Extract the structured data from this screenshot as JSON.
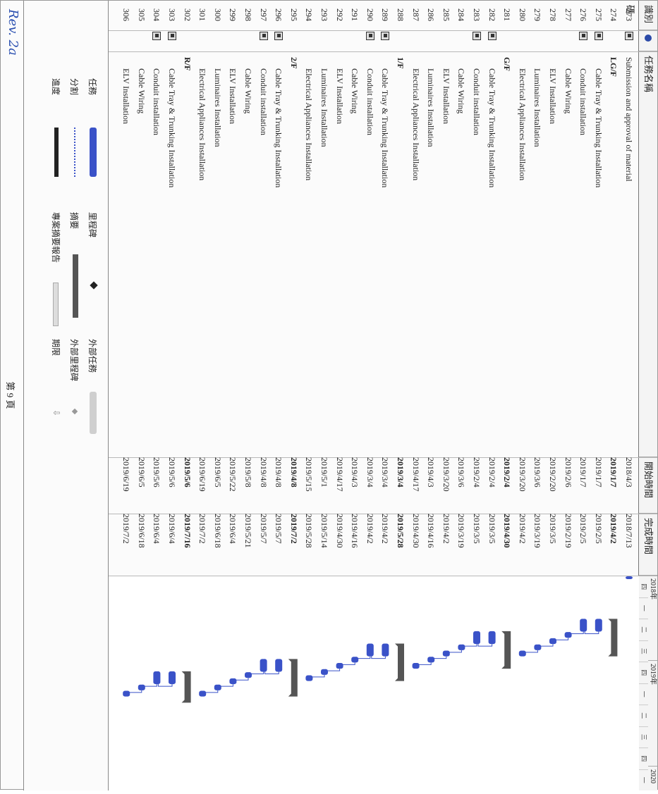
{
  "header": {
    "id": "識別碼",
    "mode": "",
    "name": "任務名稱",
    "start": "開始時間",
    "finish": "完成時間"
  },
  "timeline": {
    "year_2018": "2018年",
    "year_2019": "2019年",
    "year_2020": "2020",
    "quarters_2018": [
      "四",
      "一",
      "二",
      "三"
    ],
    "quarters_2019": [
      "四",
      "一",
      "二",
      "三",
      "四",
      "一"
    ]
  },
  "rows": [
    {
      "id": "273",
      "name": "Submission and approval of material",
      "start": "2018/4/3",
      "finish": "2018/7/13",
      "level": 0,
      "summary": false,
      "info": true
    },
    {
      "id": "274",
      "name": "LG/F",
      "start": "2019/1/7",
      "finish": "2019/4/2",
      "level": 0,
      "summary": true,
      "info": false
    },
    {
      "id": "275",
      "name": "Cable Tray & Trunking Installation",
      "start": "2019/1/7",
      "finish": "2019/2/5",
      "level": 1,
      "summary": false,
      "info": true
    },
    {
      "id": "276",
      "name": "Conduit installation",
      "start": "2019/1/7",
      "finish": "2019/2/5",
      "level": 1,
      "summary": false,
      "info": true
    },
    {
      "id": "277",
      "name": "Cable Wiring",
      "start": "2019/2/6",
      "finish": "2019/2/19",
      "level": 1,
      "summary": false,
      "info": false
    },
    {
      "id": "278",
      "name": "ELV Installation",
      "start": "2019/2/20",
      "finish": "2019/3/5",
      "level": 1,
      "summary": false,
      "info": false
    },
    {
      "id": "279",
      "name": "Luminaires Installation",
      "start": "2019/3/6",
      "finish": "2019/3/19",
      "level": 1,
      "summary": false,
      "info": false
    },
    {
      "id": "280",
      "name": "Electrical Appliances Installation",
      "start": "2019/3/20",
      "finish": "2019/4/2",
      "level": 1,
      "summary": false,
      "info": false
    },
    {
      "id": "281",
      "name": "G/F",
      "start": "2019/2/4",
      "finish": "2019/4/30",
      "level": 0,
      "summary": true,
      "info": false
    },
    {
      "id": "282",
      "name": "Cable Tray & Trunking Installation",
      "start": "2019/2/4",
      "finish": "2019/3/5",
      "level": 1,
      "summary": false,
      "info": true
    },
    {
      "id": "283",
      "name": "Conduit installation",
      "start": "2019/2/4",
      "finish": "2019/3/5",
      "level": 1,
      "summary": false,
      "info": true
    },
    {
      "id": "284",
      "name": "Cable Wiring",
      "start": "2019/3/6",
      "finish": "2019/3/19",
      "level": 1,
      "summary": false,
      "info": false
    },
    {
      "id": "285",
      "name": "ELV Installation",
      "start": "2019/3/20",
      "finish": "2019/4/2",
      "level": 1,
      "summary": false,
      "info": false
    },
    {
      "id": "286",
      "name": "Luminaires Installation",
      "start": "2019/4/3",
      "finish": "2019/4/16",
      "level": 1,
      "summary": false,
      "info": false
    },
    {
      "id": "287",
      "name": "Electrical Appliances Installation",
      "start": "2019/4/17",
      "finish": "2019/4/30",
      "level": 1,
      "summary": false,
      "info": false
    },
    {
      "id": "288",
      "name": "1/F",
      "start": "2019/3/4",
      "finish": "2019/5/28",
      "level": 0,
      "summary": true,
      "info": false
    },
    {
      "id": "289",
      "name": "Cable Tray & Trunking Installation",
      "start": "2019/3/4",
      "finish": "2019/4/2",
      "level": 1,
      "summary": false,
      "info": true
    },
    {
      "id": "290",
      "name": "Conduit installation",
      "start": "2019/3/4",
      "finish": "2019/4/2",
      "level": 1,
      "summary": false,
      "info": true
    },
    {
      "id": "291",
      "name": "Cable Wiring",
      "start": "2019/4/3",
      "finish": "2019/4/16",
      "level": 1,
      "summary": false,
      "info": false
    },
    {
      "id": "292",
      "name": "ELV Installation",
      "start": "2019/4/17",
      "finish": "2019/4/30",
      "level": 1,
      "summary": false,
      "info": false
    },
    {
      "id": "293",
      "name": "Luminaires Installation",
      "start": "2019/5/1",
      "finish": "2019/5/14",
      "level": 1,
      "summary": false,
      "info": false
    },
    {
      "id": "294",
      "name": "Electrical Appliances Installation",
      "start": "2019/5/15",
      "finish": "2019/5/28",
      "level": 1,
      "summary": false,
      "info": false
    },
    {
      "id": "295",
      "name": "2/F",
      "start": "2019/4/8",
      "finish": "2019/7/2",
      "level": 0,
      "summary": true,
      "info": false
    },
    {
      "id": "296",
      "name": "Cable Tray & Trunking Installation",
      "start": "2019/4/8",
      "finish": "2019/5/7",
      "level": 1,
      "summary": false,
      "info": true
    },
    {
      "id": "297",
      "name": "Conduit installation",
      "start": "2019/4/8",
      "finish": "2019/5/7",
      "level": 1,
      "summary": false,
      "info": true
    },
    {
      "id": "298",
      "name": "Cable Wiring",
      "start": "2019/5/8",
      "finish": "2019/5/21",
      "level": 1,
      "summary": false,
      "info": false
    },
    {
      "id": "299",
      "name": "ELV Installation",
      "start": "2019/5/22",
      "finish": "2019/6/4",
      "level": 1,
      "summary": false,
      "info": false
    },
    {
      "id": "300",
      "name": "Luminaires Installation",
      "start": "2019/6/5",
      "finish": "2019/6/18",
      "level": 1,
      "summary": false,
      "info": false
    },
    {
      "id": "301",
      "name": "Electrical Appliances Installation",
      "start": "2019/6/19",
      "finish": "2019/7/2",
      "level": 1,
      "summary": false,
      "info": false
    },
    {
      "id": "302",
      "name": "R/F",
      "start": "2019/5/6",
      "finish": "2019/7/16",
      "level": 0,
      "summary": true,
      "info": false
    },
    {
      "id": "303",
      "name": "Cable Tray & Trunking Installation",
      "start": "2019/5/6",
      "finish": "2019/6/4",
      "level": 1,
      "summary": false,
      "info": true
    },
    {
      "id": "304",
      "name": "Conduit installation",
      "start": "2019/5/6",
      "finish": "2019/6/4",
      "level": 1,
      "summary": false,
      "info": true
    },
    {
      "id": "305",
      "name": "Cable Wiring",
      "start": "2019/6/5",
      "finish": "2019/6/18",
      "level": 1,
      "summary": false,
      "info": false
    },
    {
      "id": "306",
      "name": "ELV Installation",
      "start": "2019/6/19",
      "finish": "2019/7/2",
      "level": 1,
      "summary": false,
      "info": false
    }
  ],
  "legend": {
    "task": "任務",
    "split": "分割",
    "progress": "進度",
    "milestone": "里程碑",
    "summary": "摘要",
    "project_summary": "專案摘要報告",
    "external_tasks": "外部任務",
    "external_milestone": "外部里程碑",
    "deadline": "期限"
  },
  "footer": {
    "page": "第 9 頁",
    "signature": "Rev. 2a"
  },
  "colors": {
    "bar": "#3a52c8",
    "summary": "#555555",
    "link": "#3a52c8"
  }
}
